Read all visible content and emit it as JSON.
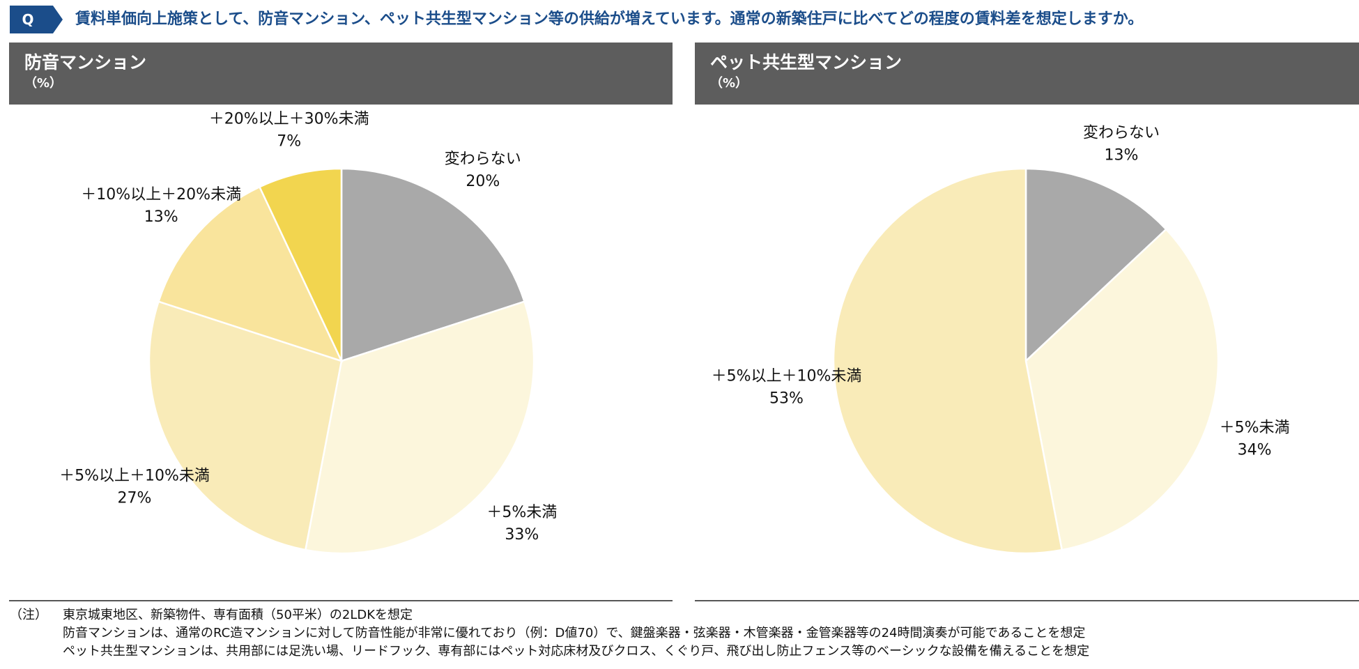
{
  "header": {
    "q_label": "Q",
    "question": "賃料単価向上施策として、防音マンション、ペット共生型マンション等の供給が増えています。通常の新築住戸に比べてどの程度の賃料差を想定しますか。"
  },
  "colors": {
    "accent": "#1b4d8a",
    "header_bg": "#5d5d5d",
    "slice_gray": "#a9a9a9",
    "slice_lt5": "#fcf6dc",
    "slice_5_10": "#f9ebb8",
    "slice_10_20": "#f9e49c",
    "slice_20_30": "#f2d54f"
  },
  "panels": [
    {
      "title": "防音マンション",
      "unit": "（%）"
    },
    {
      "title": "ペット共生型マンション",
      "unit": "（%）"
    }
  ],
  "chart_data": [
    {
      "type": "pie",
      "title": "防音マンション",
      "unit": "%",
      "start": "12 o'clock, clockwise",
      "slices": [
        {
          "label": "変わらない",
          "value": 20,
          "value_label": "20%",
          "color": "#a9a9a9"
        },
        {
          "label": "＋5%未満",
          "value": 33,
          "value_label": "33%",
          "color": "#fcf6dc"
        },
        {
          "label": "＋5%以上＋10%未満",
          "value": 27,
          "value_label": "27%",
          "color": "#f9ebb8"
        },
        {
          "label": "＋10%以上＋20%未満",
          "value": 13,
          "value_label": "13%",
          "color": "#f9e49c"
        },
        {
          "label": "＋20%以上＋30%未満",
          "value": 7,
          "value_label": "7%",
          "color": "#f2d54f"
        }
      ]
    },
    {
      "type": "pie",
      "title": "ペット共生型マンション",
      "unit": "%",
      "start": "12 o'clock, clockwise",
      "slices": [
        {
          "label": "変わらない",
          "value": 13,
          "value_label": "13%",
          "color": "#a9a9a9"
        },
        {
          "label": "＋5%未満",
          "value": 34,
          "value_label": "34%",
          "color": "#fcf6dc"
        },
        {
          "label": "＋5%以上＋10%未満",
          "value": 53,
          "value_label": "53%",
          "color": "#f9ebb8"
        }
      ]
    }
  ],
  "notes": {
    "mark": "（注）",
    "lines": [
      "東京城東地区、新築物件、専有面積（50平米）の2LDKを想定",
      "防音マンションは、通常のRC造マンションに対して防音性能が非常に優れており（例：D値70）で、鍵盤楽器・弦楽器・木管楽器・金管楽器等の24時間演奏が可能であることを想定",
      "ペット共生型マンションは、共用部には足洗い場、リードフック、専有部にはペット対応床材及びクロス、くぐり戸、飛び出し防止フェンス等のベーシックな設備を備えることを想定"
    ]
  }
}
